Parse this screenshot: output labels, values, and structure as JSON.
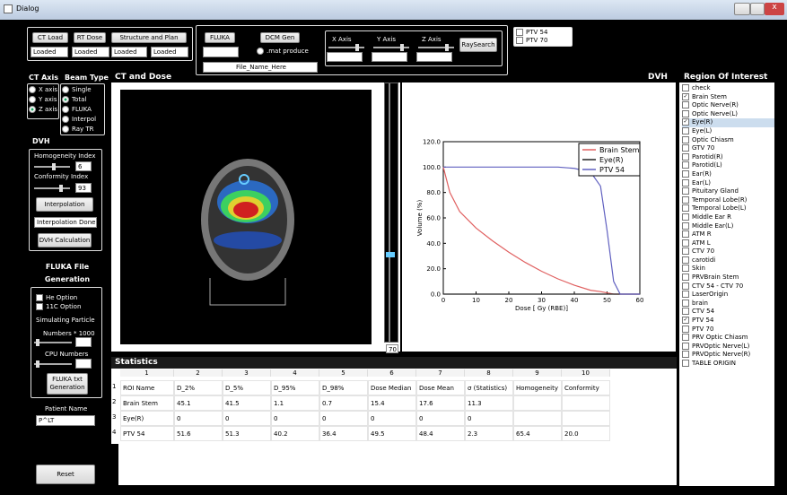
{
  "window": {
    "title": "Dialog"
  },
  "load": {
    "buttons": [
      "CT Load",
      "RT Dose",
      "Structure and Plan"
    ],
    "status": [
      "Loaded",
      "Loaded",
      "Loaded",
      "Loaded"
    ]
  },
  "fluka": {
    "button": "FLUKA",
    "dcm_button": "DCM Gen",
    "radio": ".mat produce",
    "file_name": "File_Name_Here"
  },
  "axes": {
    "labels": [
      "X Axis",
      "Y Axis",
      "Z Axis"
    ],
    "button": "RaySearch"
  },
  "ptv_checks": [
    "PTV 54",
    "PTV 70"
  ],
  "ct_axis": {
    "title": "CT Axis",
    "options": [
      "X axis",
      "Y axis",
      "Z axis"
    ],
    "selected": 2
  },
  "beam_type": {
    "title": "Beam Type",
    "options": [
      "Single",
      "Total",
      "FLUKA",
      "Interpol",
      "Ray TR"
    ],
    "selected": 1
  },
  "panels": {
    "ct": "CT and Dose",
    "dvh": "DVH",
    "roi": "Region Of Interest",
    "slider_value": "70",
    "statistics": "Statistics"
  },
  "dvh_group": {
    "title": "DVH",
    "homogeneity_label": "Homogeneity Index",
    "homogeneity_value": "6",
    "conformity_label": "Conformity Index",
    "conformity_value": "93",
    "interp_button": "Interpolation",
    "interp_status": "Interpolation Done",
    "calc_button": "DVH Calculation"
  },
  "fluka_gen": {
    "title1": "FLUKA File",
    "title2": "Generation",
    "options": [
      "He Option",
      "11C Option"
    ],
    "particle": "Simulating Particle",
    "numbers": "Numbers * 1000",
    "cpu": "CPU Numbers",
    "button1": "FLUKA txt",
    "button2": "Generation"
  },
  "patient": {
    "label": "Patient Name",
    "value": "P^LT"
  },
  "reset": "Reset",
  "roi": [
    {
      "name": "check",
      "checked": false
    },
    {
      "name": "Brain Stem",
      "checked": true
    },
    {
      "name": "Optic Nerve(R)",
      "checked": false
    },
    {
      "name": "Optic Nerve(L)",
      "checked": false
    },
    {
      "name": "Eye(R)",
      "checked": true
    },
    {
      "name": "Eye(L)",
      "checked": false
    },
    {
      "name": "Optic Chiasm",
      "checked": false
    },
    {
      "name": "GTV 70",
      "checked": false
    },
    {
      "name": "Parotid(R)",
      "checked": false
    },
    {
      "name": "Parotid(L)",
      "checked": false
    },
    {
      "name": "Ear(R)",
      "checked": false
    },
    {
      "name": "Ear(L)",
      "checked": false
    },
    {
      "name": "Pituitary Gland",
      "checked": false
    },
    {
      "name": "Temporal Lobe(R)",
      "checked": false
    },
    {
      "name": "Temporal Lobe(L)",
      "checked": false
    },
    {
      "name": "Middle Ear R",
      "checked": false
    },
    {
      "name": "Middle Ear(L)",
      "checked": false
    },
    {
      "name": "ATM R",
      "checked": false
    },
    {
      "name": "ATM L",
      "checked": false
    },
    {
      "name": "CTV 70",
      "checked": false
    },
    {
      "name": "carotidi",
      "checked": false
    },
    {
      "name": "Skin",
      "checked": false
    },
    {
      "name": "PRVBrain Stem",
      "checked": false
    },
    {
      "name": "CTV 54 - CTV 70",
      "checked": false
    },
    {
      "name": "LaserOrigin",
      "checked": false
    },
    {
      "name": "brain",
      "checked": false
    },
    {
      "name": "CTV 54",
      "checked": false
    },
    {
      "name": "PTV 54",
      "checked": true
    },
    {
      "name": "PTV 70",
      "checked": false
    },
    {
      "name": "PRV Optic Chiasm",
      "checked": false
    },
    {
      "name": "PRVOptic Nerve(L)",
      "checked": false
    },
    {
      "name": "PRVOptic Nerve(R)",
      "checked": false
    },
    {
      "name": "TABLE ORIGIN",
      "checked": false
    }
  ],
  "table": {
    "columns": [
      "1",
      "2",
      "3",
      "4",
      "5",
      "6",
      "7",
      "8",
      "9",
      "10"
    ],
    "row_numbers": [
      "1",
      "2",
      "3",
      "4"
    ],
    "rows": [
      [
        "ROI Name",
        "D_2%",
        "D_5%",
        "D_95%",
        "D_98%",
        "Dose Median",
        "Dose Mean",
        "σ (Statistics)",
        "Homogeneity",
        "Conformity"
      ],
      [
        "Brain Stem",
        "45.1",
        "41.5",
        "1.1",
        "0.7",
        "15.4",
        "17.6",
        "11.3",
        null,
        null
      ],
      [
        "Eye(R)",
        "0",
        "0",
        "0",
        "0",
        "0",
        "0",
        "0",
        null,
        null
      ],
      [
        "PTV 54",
        "51.6",
        "51.3",
        "40.2",
        "36.4",
        "49.5",
        "48.4",
        "2.3",
        "65.4",
        "20.0"
      ]
    ]
  },
  "chart_data": {
    "type": "line",
    "xlabel": "Dose [ Gy (RBE)]",
    "ylabel": "Volume (%)",
    "x": [
      0,
      2,
      5,
      10,
      15,
      20,
      25,
      30,
      35,
      40,
      45,
      48,
      50,
      52,
      54,
      60
    ],
    "series": [
      {
        "name": "Brain Stem",
        "color": "#e06060",
        "values": [
          100,
          80,
          65,
          52,
          42,
          33,
          25,
          18,
          12,
          7,
          3,
          2,
          1,
          0,
          0,
          0
        ]
      },
      {
        "name": "Eye(R)",
        "color": "#222222",
        "values": [
          0,
          0,
          0,
          0,
          0,
          0,
          0,
          0,
          0,
          0,
          0,
          0,
          0,
          0,
          0,
          0
        ]
      },
      {
        "name": "PTV 54",
        "color": "#6060c0",
        "values": [
          100,
          100,
          100,
          100,
          100,
          100,
          100,
          100,
          100,
          99,
          96,
          85,
          50,
          10,
          0,
          0
        ]
      }
    ],
    "xlim": [
      0,
      60
    ],
    "ylim": [
      0,
      120
    ],
    "xticks": [
      0,
      10,
      20,
      30,
      40,
      50,
      60
    ],
    "yticks": [
      {
        "value": 0,
        "label": "0.0"
      },
      {
        "value": 20,
        "label": "20.0"
      },
      {
        "value": 40,
        "label": "40.0"
      },
      {
        "value": 60,
        "label": "60.0"
      },
      {
        "value": 80,
        "label": "80.0"
      },
      {
        "value": 100,
        "label": "100.0"
      },
      {
        "value": 120,
        "label": "120.0"
      }
    ]
  }
}
